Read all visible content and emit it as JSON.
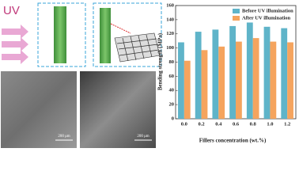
{
  "figure": {
    "uv_label": "UV",
    "scale_bar_left": "200 μm",
    "scale_bar_right": "200 μm"
  },
  "chart_data": {
    "type": "bar",
    "y_label": "Bending strength (MPa)",
    "x_label": "Fillers concentration (wt.%)",
    "categories": [
      "0.0",
      "0.2",
      "0.4",
      "0.6",
      "0.8",
      "1.0",
      "1.2"
    ],
    "series": [
      {
        "name": "Before UV illumination",
        "color": "#5fb4c9",
        "values": [
          108,
          123,
          126,
          131,
          136,
          130,
          128
        ]
      },
      {
        "name": "After UV illumination",
        "color": "#f5a45e",
        "values": [
          82,
          97,
          102,
          109,
          114,
          109,
          108
        ]
      }
    ],
    "ylim": [
      0,
      160
    ],
    "yticks": [
      0,
      20,
      40,
      60,
      80,
      100,
      120,
      140,
      160
    ],
    "legend": "upper-right"
  }
}
